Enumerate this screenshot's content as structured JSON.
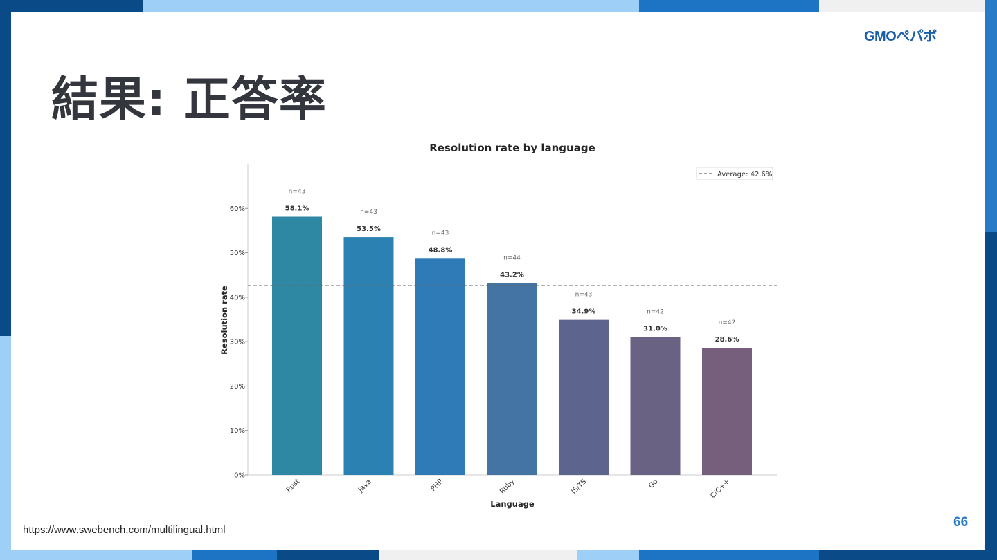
{
  "slide": {
    "title": "結果: 正答率",
    "logo": "GMOペパボ",
    "source_url": "https://www.swebench.com/multilingual.html",
    "page_number": "66"
  },
  "colors": {
    "frame_dark": "#0a4a86",
    "frame_mid": "#2a7bc7",
    "frame_light": "#9dcff7",
    "frame_gray": "#f0f0f0",
    "title_text": "#33373d",
    "accent": "#2a7bc7",
    "bar_colors": [
      "#2e88a3",
      "#2b82b2",
      "#2f7bb8",
      "#4474a4",
      "#5d658f",
      "#6a6283",
      "#765f7d"
    ]
  },
  "chart_data": {
    "type": "bar",
    "title": "Resolution rate by language",
    "xlabel": "Language",
    "ylabel": "Resolution rate",
    "categories": [
      "Rust",
      "Java",
      "PHP",
      "Ruby",
      "JS/TS",
      "Go",
      "C/C++"
    ],
    "values": [
      58.1,
      53.5,
      48.8,
      43.2,
      34.9,
      31.0,
      28.6
    ],
    "value_labels": [
      "58.1%",
      "53.5%",
      "48.8%",
      "43.2%",
      "34.9%",
      "31.0%",
      "28.6%"
    ],
    "n_labels": [
      "n=43",
      "n=43",
      "n=43",
      "n=44",
      "n=43",
      "n=42",
      "n=42"
    ],
    "ylim": [
      0,
      70
    ],
    "yticks": [
      0,
      10,
      20,
      30,
      40,
      50,
      60
    ],
    "ytick_labels": [
      "0%",
      "10%",
      "20%",
      "30%",
      "40%",
      "50%",
      "60%"
    ],
    "average": 42.6,
    "average_label": "Average: 42.6%",
    "legend_position": "top-right",
    "grid": false
  }
}
